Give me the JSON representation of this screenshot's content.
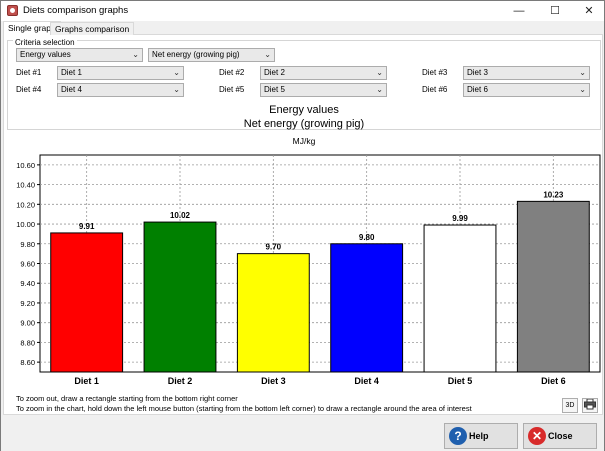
{
  "window": {
    "title": "Diets comparison graphs",
    "minimize": "—",
    "maximize": "☐",
    "close": "✕"
  },
  "tabs": [
    {
      "label": "Single graph",
      "active": true
    },
    {
      "label": "Graphs comparison",
      "active": false
    }
  ],
  "criteria": {
    "legend": "Criteria selection",
    "category": "Energy values",
    "measure": "Net energy (growing pig)",
    "diets": [
      {
        "label": "Diet #1",
        "value": "Diet 1"
      },
      {
        "label": "Diet #2",
        "value": "Diet 2"
      },
      {
        "label": "Diet #3",
        "value": "Diet 3"
      },
      {
        "label": "Diet #4",
        "value": "Diet 4"
      },
      {
        "label": "Diet #5",
        "value": "Diet 5"
      },
      {
        "label": "Diet #6",
        "value": "Diet 6"
      }
    ]
  },
  "chart_data": {
    "type": "bar",
    "title": "Energy values",
    "subtitle": "Net energy (growing pig)",
    "ylabel": "MJ/kg",
    "categories": [
      "Diet 1",
      "Diet 2",
      "Diet 3",
      "Diet 4",
      "Diet 5",
      "Diet 6"
    ],
    "values": [
      9.91,
      10.02,
      9.7,
      9.8,
      9.99,
      10.23
    ],
    "data_labels": [
      "9.91",
      "10.02",
      "9.70",
      "9.80",
      "9.99",
      "10.23"
    ],
    "colors": [
      "#ff0000",
      "#008000",
      "#ffff00",
      "#0000ff",
      "#ffffff",
      "#808080"
    ],
    "ylim": [
      8.5,
      10.7
    ],
    "yticks": [
      "8.60",
      "8.80",
      "9.00",
      "9.20",
      "9.40",
      "9.60",
      "9.80",
      "10.00",
      "10.20",
      "10.40",
      "10.60"
    ],
    "grid": true
  },
  "hints": [
    "To zoom out, draw a rectangle starting from the bottom right corner",
    "To zoom in the chart, hold down the left mouse button (starting from the bottom left corner) to draw a rectangle around the area of interest"
  ],
  "tools": {
    "view3d": "3D",
    "print_icon": "printer-icon"
  },
  "buttons": {
    "help": "Help",
    "close": "Close"
  },
  "colors": {
    "help_icon": "#1f5fae",
    "close_icon": "#d82b2b"
  }
}
